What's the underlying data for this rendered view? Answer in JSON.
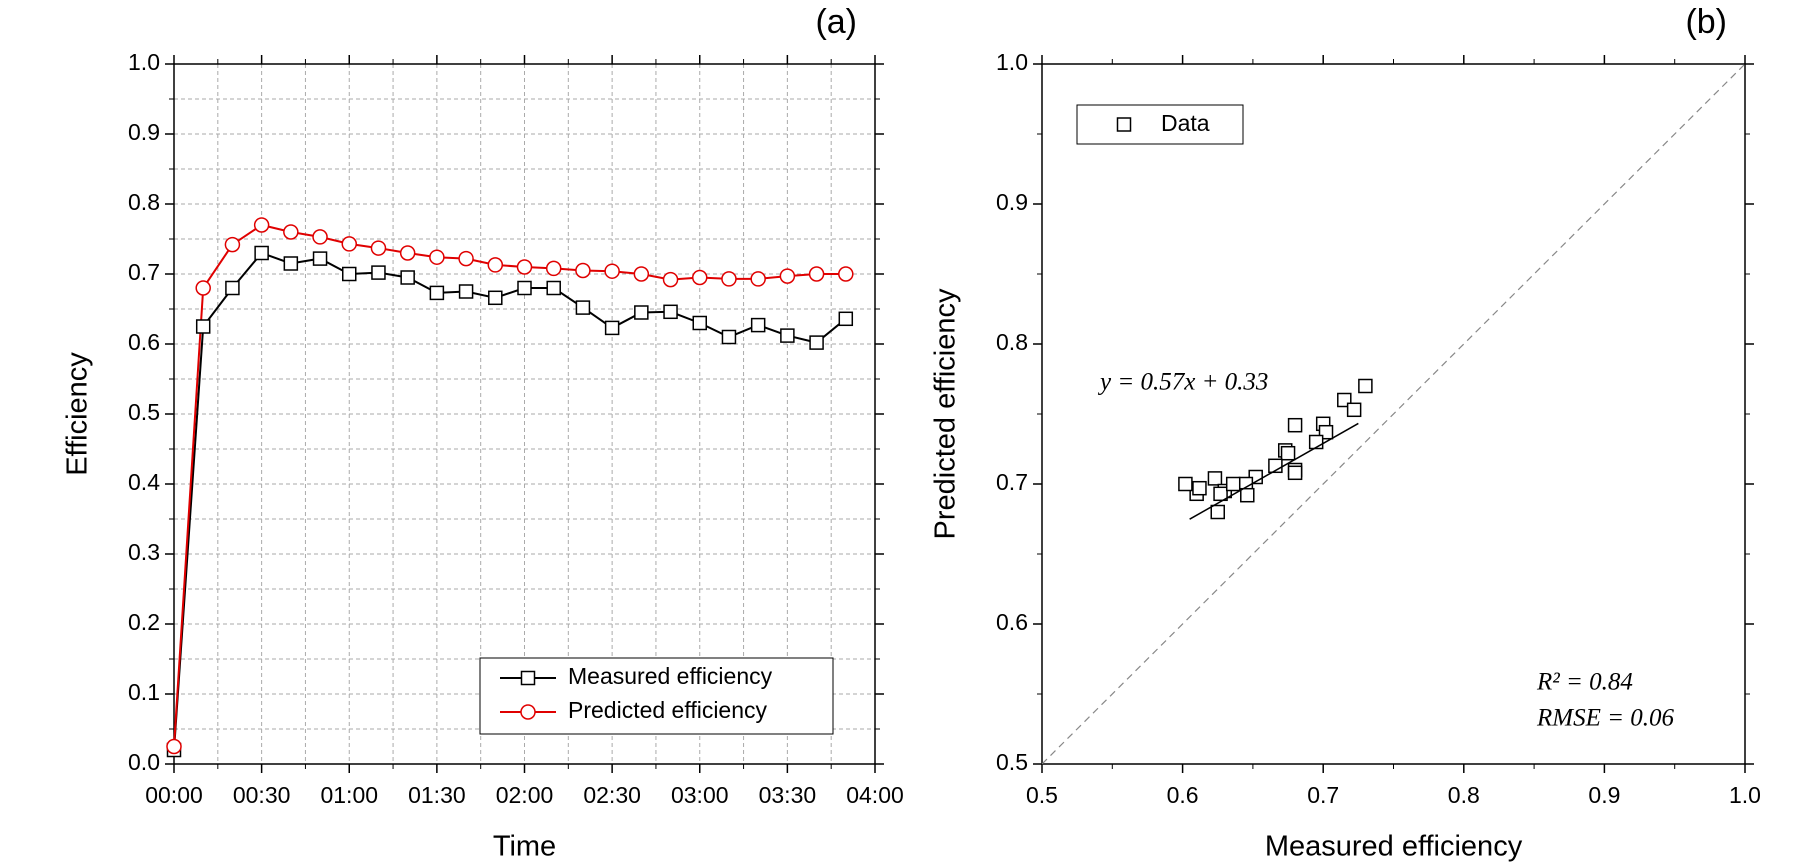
{
  "chart_data": [
    {
      "type": "line",
      "panel_label": "(a)",
      "x_label": "Time",
      "y_label": "Efficiency",
      "x": [
        0,
        10,
        20,
        30,
        40,
        50,
        60,
        70,
        80,
        90,
        100,
        110,
        120,
        130,
        140,
        150,
        160,
        170,
        180,
        190,
        200,
        210,
        220,
        230
      ],
      "series": [
        {
          "name": "Measured efficiency",
          "color": "#000000",
          "marker": "square",
          "values": [
            0.02,
            0.625,
            0.68,
            0.73,
            0.715,
            0.722,
            0.7,
            0.702,
            0.695,
            0.673,
            0.675,
            0.666,
            0.68,
            0.68,
            0.652,
            0.623,
            0.645,
            0.646,
            0.63,
            0.61,
            0.627,
            0.612,
            0.602,
            0.636
          ]
        },
        {
          "name": "Predicted efficiency",
          "color": "#e00000",
          "marker": "circle",
          "values": [
            0.025,
            0.68,
            0.742,
            0.77,
            0.76,
            0.753,
            0.743,
            0.737,
            0.73,
            0.724,
            0.722,
            0.713,
            0.71,
            0.708,
            0.705,
            0.704,
            0.7,
            0.692,
            0.695,
            0.693,
            0.693,
            0.697,
            0.7,
            0.7
          ]
        }
      ],
      "xlim": [
        0,
        240
      ],
      "xticks": [
        {
          "value": 0,
          "label": "00:00"
        },
        {
          "value": 30,
          "label": "00:30"
        },
        {
          "value": 60,
          "label": "01:00"
        },
        {
          "value": 90,
          "label": "01:30"
        },
        {
          "value": 120,
          "label": "02:00"
        },
        {
          "value": 150,
          "label": "02:30"
        },
        {
          "value": 180,
          "label": "03:00"
        },
        {
          "value": 210,
          "label": "03:30"
        },
        {
          "value": 240,
          "label": "04:00"
        }
      ],
      "xminorticks": [
        15,
        45,
        75,
        105,
        135,
        165,
        195,
        225
      ],
      "ylim": [
        0,
        1
      ],
      "yticks": [
        {
          "value": 0,
          "label": "0.0"
        },
        0.1,
        0.2,
        0.3,
        0.4,
        0.5,
        0.6,
        0.7,
        0.8,
        0.9,
        {
          "value": 1,
          "label": "1.0"
        }
      ],
      "yminorticks": [
        0.05,
        0.15,
        0.25,
        0.35,
        0.45,
        0.55,
        0.65,
        0.75,
        0.85,
        0.95
      ],
      "grid": true,
      "legend": "lower right"
    },
    {
      "type": "scatter",
      "panel_label": "(b)",
      "x_label": "Measured efficiency",
      "y_label": "Predicted efficiency",
      "series": [
        {
          "name": "Data",
          "color": "#000000",
          "marker": "square",
          "x": [
            0.625,
            0.68,
            0.73,
            0.715,
            0.722,
            0.7,
            0.702,
            0.695,
            0.673,
            0.675,
            0.666,
            0.68,
            0.68,
            0.652,
            0.623,
            0.645,
            0.646,
            0.63,
            0.61,
            0.627,
            0.612,
            0.602,
            0.636
          ],
          "values": [
            0.68,
            0.742,
            0.77,
            0.76,
            0.753,
            0.743,
            0.737,
            0.73,
            0.724,
            0.722,
            0.713,
            0.71,
            0.708,
            0.705,
            0.704,
            0.7,
            0.692,
            0.695,
            0.693,
            0.693,
            0.697,
            0.7,
            0.7
          ]
        }
      ],
      "fit": {
        "slope": 0.57,
        "intercept": 0.33,
        "xrange": [
          0.605,
          0.725
        ]
      },
      "fit_label": "y = 0.57x + 0.33",
      "annotations": [
        "R² = 0.84",
        "RMSE = 0.06"
      ],
      "identity_line": true,
      "xlim": [
        0.5,
        1
      ],
      "xticks": [
        0.5,
        0.6,
        0.7,
        0.8,
        0.9,
        {
          "value": 1,
          "label": "1.0"
        }
      ],
      "xminorticks": [
        0.55,
        0.65,
        0.75,
        0.85,
        0.95
      ],
      "ylim": [
        0.5,
        1
      ],
      "yticks": [
        0.5,
        0.6,
        0.7,
        0.8,
        0.9,
        {
          "value": 1,
          "label": "1.0"
        }
      ],
      "yminorticks": [
        0.55,
        0.65,
        0.75,
        0.85,
        0.95
      ],
      "grid": false,
      "legend": "upper left"
    }
  ]
}
